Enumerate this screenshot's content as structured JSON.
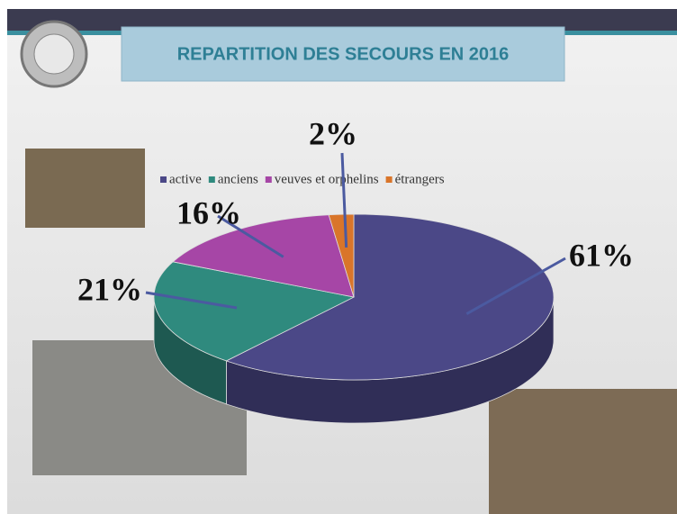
{
  "chart_data": {
    "type": "pie",
    "title": "REPARTITION DES SECOURS EN 2016",
    "categories": [
      "active",
      "anciens",
      "veuves et orphelins",
      "étrangers"
    ],
    "values": [
      61,
      21,
      16,
      2
    ],
    "value_labels": [
      "61%",
      "21%",
      "16%",
      "2%"
    ],
    "colors": [
      "#4b4887",
      "#2f8a7e",
      "#a646a6",
      "#d9752a"
    ],
    "legend": "top"
  }
}
